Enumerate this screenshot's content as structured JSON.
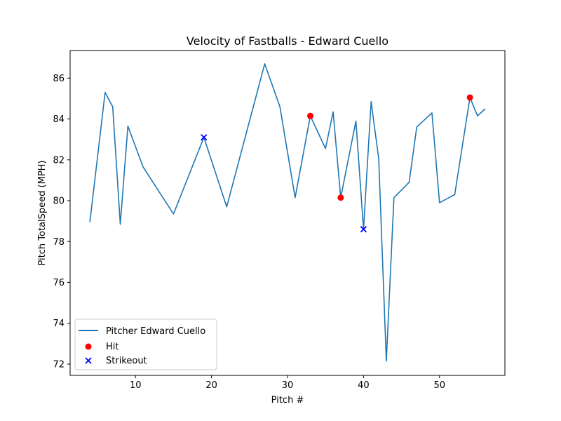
{
  "chart_data": {
    "type": "line",
    "title": "Velocity of Fastballs - Edward Cuello",
    "xlabel": "Pitch #",
    "ylabel": "Pitch TotalSpeed (MPH)",
    "xlim": [
      1.4,
      58.6
    ],
    "ylim": [
      71.45,
      87.35
    ],
    "xticks": [
      10,
      20,
      30,
      40,
      50
    ],
    "yticks": [
      72,
      74,
      76,
      78,
      80,
      82,
      84,
      86
    ],
    "grid": false,
    "legend_position": "lower-left",
    "series": [
      {
        "name": "Pitcher Edward Cuello",
        "kind": "line",
        "color": "#1f77b4",
        "x": [
          4,
          6,
          7,
          8,
          9,
          11,
          15,
          19,
          22,
          27,
          29,
          31,
          33,
          35,
          36,
          37,
          39,
          40,
          41,
          42,
          43,
          44,
          46,
          47,
          49,
          50,
          52,
          54,
          55,
          56
        ],
        "y": [
          78.95,
          85.3,
          84.6,
          78.85,
          83.65,
          81.65,
          79.35,
          83.1,
          79.7,
          86.7,
          84.6,
          80.15,
          84.15,
          82.55,
          84.35,
          80.15,
          83.9,
          78.6,
          84.85,
          82.05,
          72.15,
          80.15,
          80.9,
          83.6,
          84.3,
          79.9,
          80.3,
          85.05,
          84.15,
          84.5
        ]
      },
      {
        "name": "Hit",
        "kind": "scatter",
        "marker": "circle",
        "color": "#ff0000",
        "x": [
          33,
          37,
          54
        ],
        "y": [
          84.15,
          80.15,
          85.05
        ]
      },
      {
        "name": "Strikeout",
        "kind": "scatter",
        "marker": "x",
        "color": "#0000ff",
        "x": [
          19,
          40
        ],
        "y": [
          83.1,
          78.6
        ]
      }
    ]
  }
}
